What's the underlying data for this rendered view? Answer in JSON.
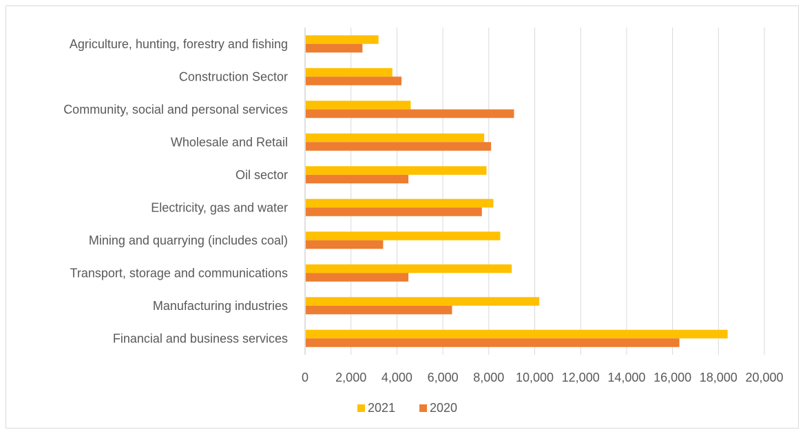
{
  "chart_data": {
    "type": "bar",
    "orientation": "horizontal",
    "categories": [
      "Agriculture, hunting, forestry and fishing",
      "Construction Sector",
      "Community, social and personal services",
      "Wholesale and Retail",
      "Oil sector",
      "Electricity, gas and water",
      "Mining and quarrying (includes coal)",
      "Transport, storage and communications",
      "Manufacturing industries",
      "Financial and business services"
    ],
    "series": [
      {
        "name": "2021",
        "color": "#FFC000",
        "values": [
          3200,
          3800,
          4600,
          7800,
          7900,
          8200,
          8500,
          9000,
          10200,
          18400
        ]
      },
      {
        "name": "2020",
        "color": "#ED7D31",
        "values": [
          2500,
          4200,
          9100,
          8100,
          4500,
          7700,
          3400,
          4500,
          6400,
          16300
        ]
      }
    ],
    "xlim": [
      0,
      20000
    ],
    "xticks": [
      "0",
      "2,000",
      "4,000",
      "6,000",
      "8,000",
      "10,000",
      "12,000",
      "14,000",
      "16,000",
      "18,000",
      "20,000"
    ],
    "gridlines": "vertical",
    "legend_position": "bottom",
    "title": "",
    "xlabel": "",
    "ylabel": ""
  }
}
